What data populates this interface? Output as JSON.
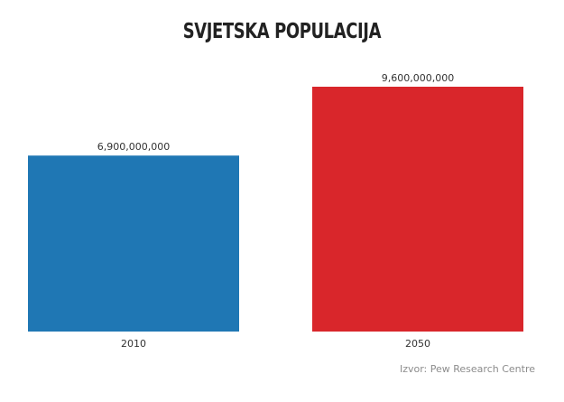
{
  "chart_data": {
    "type": "bar",
    "title": "SVJETSKA POPULACIJA",
    "categories": [
      "2010",
      "2050"
    ],
    "values": [
      6900000000,
      9600000000
    ],
    "value_labels": [
      "6,900,000,000",
      "9,600,000,000"
    ],
    "colors": [
      "#1f77b4",
      "#d9262b"
    ],
    "xlabel": "",
    "ylabel": "",
    "ylim": [
      0,
      9600000000
    ],
    "grid": false,
    "legend": "none"
  },
  "source": "Izvor: Pew Research Centre"
}
